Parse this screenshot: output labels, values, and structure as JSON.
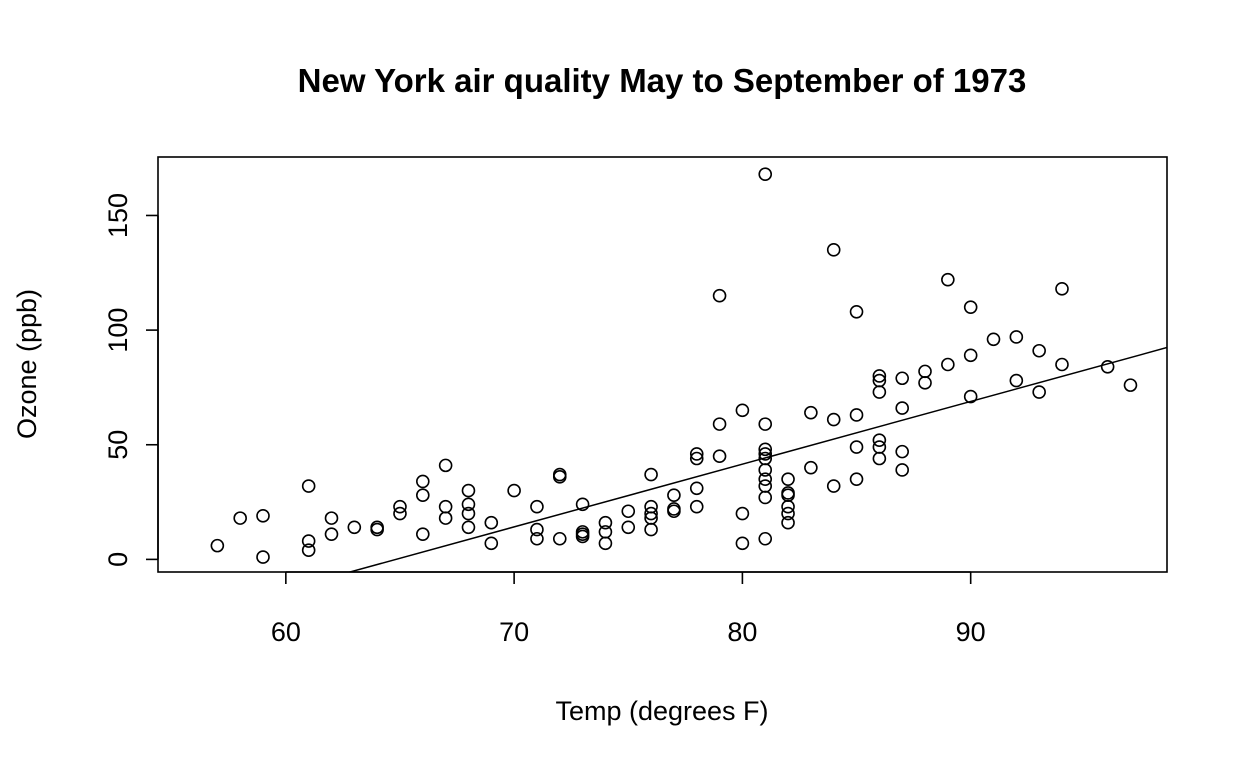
{
  "chart_data": {
    "type": "scatter",
    "title": "New York air quality May to September of 1973",
    "xlabel": "Temp (degrees F)",
    "ylabel": "Ozone (ppb)",
    "xlim": [
      54.4,
      98.6
    ],
    "ylim": [
      -5.5,
      175.5
    ],
    "xticks": [
      60,
      70,
      80,
      90
    ],
    "yticks": [
      0,
      50,
      100,
      150
    ],
    "grid": false,
    "legend": "none",
    "points": [
      {
        "x": 57,
        "y": 6
      },
      {
        "x": 58,
        "y": 18
      },
      {
        "x": 59,
        "y": 19
      },
      {
        "x": 59,
        "y": 1
      },
      {
        "x": 61,
        "y": 32
      },
      {
        "x": 61,
        "y": 8
      },
      {
        "x": 61,
        "y": 4
      },
      {
        "x": 62,
        "y": 18
      },
      {
        "x": 62,
        "y": 11
      },
      {
        "x": 63,
        "y": 14
      },
      {
        "x": 64,
        "y": 14
      },
      {
        "x": 64,
        "y": 13
      },
      {
        "x": 65,
        "y": 23
      },
      {
        "x": 65,
        "y": 20
      },
      {
        "x": 66,
        "y": 34
      },
      {
        "x": 66,
        "y": 28
      },
      {
        "x": 66,
        "y": 11
      },
      {
        "x": 67,
        "y": 41
      },
      {
        "x": 67,
        "y": 23
      },
      {
        "x": 67,
        "y": 18
      },
      {
        "x": 68,
        "y": 30
      },
      {
        "x": 68,
        "y": 24
      },
      {
        "x": 68,
        "y": 20
      },
      {
        "x": 68,
        "y": 14
      },
      {
        "x": 69,
        "y": 16
      },
      {
        "x": 69,
        "y": 7
      },
      {
        "x": 70,
        "y": 30
      },
      {
        "x": 71,
        "y": 23
      },
      {
        "x": 71,
        "y": 13
      },
      {
        "x": 71,
        "y": 9
      },
      {
        "x": 72,
        "y": 37
      },
      {
        "x": 72,
        "y": 36
      },
      {
        "x": 72,
        "y": 9
      },
      {
        "x": 73,
        "y": 24
      },
      {
        "x": 73,
        "y": 12
      },
      {
        "x": 73,
        "y": 11
      },
      {
        "x": 73,
        "y": 10
      },
      {
        "x": 74,
        "y": 16
      },
      {
        "x": 74,
        "y": 12
      },
      {
        "x": 74,
        "y": 7
      },
      {
        "x": 75,
        "y": 21
      },
      {
        "x": 75,
        "y": 14
      },
      {
        "x": 76,
        "y": 37
      },
      {
        "x": 76,
        "y": 23
      },
      {
        "x": 76,
        "y": 20
      },
      {
        "x": 76,
        "y": 18
      },
      {
        "x": 76,
        "y": 13
      },
      {
        "x": 77,
        "y": 28
      },
      {
        "x": 77,
        "y": 22
      },
      {
        "x": 77,
        "y": 21
      },
      {
        "x": 78,
        "y": 46
      },
      {
        "x": 78,
        "y": 44
      },
      {
        "x": 78,
        "y": 31
      },
      {
        "x": 78,
        "y": 23
      },
      {
        "x": 79,
        "y": 115
      },
      {
        "x": 79,
        "y": 59
      },
      {
        "x": 79,
        "y": 45
      },
      {
        "x": 80,
        "y": 65
      },
      {
        "x": 80,
        "y": 20
      },
      {
        "x": 80,
        "y": 7
      },
      {
        "x": 81,
        "y": 168
      },
      {
        "x": 81,
        "y": 59
      },
      {
        "x": 81,
        "y": 48
      },
      {
        "x": 81,
        "y": 46
      },
      {
        "x": 81,
        "y": 44
      },
      {
        "x": 81,
        "y": 39
      },
      {
        "x": 81,
        "y": 35
      },
      {
        "x": 81,
        "y": 32
      },
      {
        "x": 81,
        "y": 27
      },
      {
        "x": 81,
        "y": 9
      },
      {
        "x": 82,
        "y": 35
      },
      {
        "x": 82,
        "y": 29
      },
      {
        "x": 82,
        "y": 28
      },
      {
        "x": 82,
        "y": 23
      },
      {
        "x": 82,
        "y": 20
      },
      {
        "x": 82,
        "y": 16
      },
      {
        "x": 83,
        "y": 64
      },
      {
        "x": 83,
        "y": 40
      },
      {
        "x": 84,
        "y": 135
      },
      {
        "x": 84,
        "y": 61
      },
      {
        "x": 84,
        "y": 32
      },
      {
        "x": 85,
        "y": 108
      },
      {
        "x": 85,
        "y": 63
      },
      {
        "x": 85,
        "y": 49
      },
      {
        "x": 85,
        "y": 35
      },
      {
        "x": 86,
        "y": 80
      },
      {
        "x": 86,
        "y": 78
      },
      {
        "x": 86,
        "y": 73
      },
      {
        "x": 86,
        "y": 52
      },
      {
        "x": 86,
        "y": 49
      },
      {
        "x": 86,
        "y": 44
      },
      {
        "x": 87,
        "y": 79
      },
      {
        "x": 87,
        "y": 66
      },
      {
        "x": 87,
        "y": 47
      },
      {
        "x": 87,
        "y": 39
      },
      {
        "x": 88,
        "y": 82
      },
      {
        "x": 88,
        "y": 77
      },
      {
        "x": 89,
        "y": 122
      },
      {
        "x": 89,
        "y": 85
      },
      {
        "x": 90,
        "y": 110
      },
      {
        "x": 90,
        "y": 89
      },
      {
        "x": 90,
        "y": 71
      },
      {
        "x": 91,
        "y": 96
      },
      {
        "x": 92,
        "y": 97
      },
      {
        "x": 92,
        "y": 78
      },
      {
        "x": 93,
        "y": 91
      },
      {
        "x": 93,
        "y": 73
      },
      {
        "x": 94,
        "y": 118
      },
      {
        "x": 94,
        "y": 85
      },
      {
        "x": 96,
        "y": 84
      },
      {
        "x": 97,
        "y": 76
      }
    ],
    "fit_line": {
      "x": [
        54.4,
        98.6
      ],
      "y": [
        -28.5,
        92.4
      ]
    }
  }
}
